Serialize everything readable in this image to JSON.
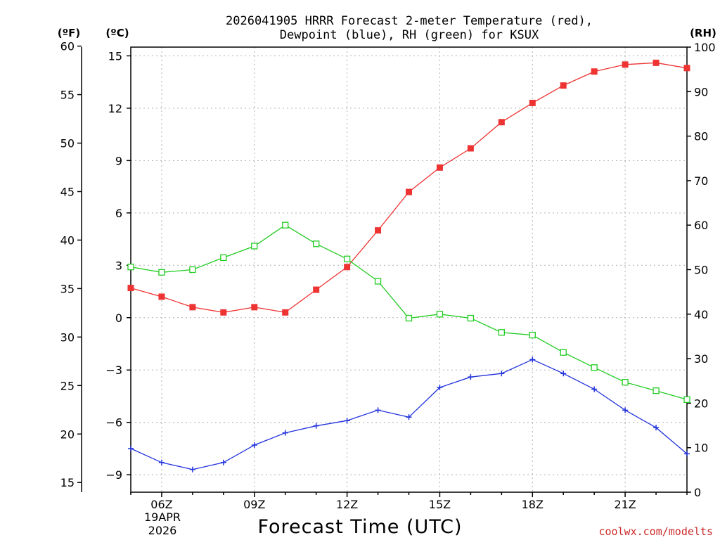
{
  "chart_data": {
    "type": "line",
    "title_line1": "2026041905 HRRR Forecast 2-meter Temperature (red),",
    "title_line2": "Dewpoint (blue), RH (green) for KSUX",
    "xlabel": "Forecast Time (UTC)",
    "unit_f": "(ºF)",
    "unit_c": "(ºC)",
    "unit_rh": "(RH)",
    "date_label_1": "19APR",
    "date_label_2": "2026",
    "credit": "coolwx.com/modelts",
    "x_hours": [
      5,
      6,
      7,
      8,
      9,
      10,
      11,
      12,
      13,
      14,
      15,
      16,
      17,
      18,
      19,
      20,
      21,
      22,
      23
    ],
    "x_tick_hours": [
      6,
      9,
      12,
      15,
      18,
      21
    ],
    "x_tick_labels": [
      "06Z",
      "09Z",
      "12Z",
      "15Z",
      "18Z",
      "21Z"
    ],
    "xlim": [
      5,
      23
    ],
    "ylim_c": [
      -10,
      15.5
    ],
    "y_ticks_c": [
      15,
      12,
      9,
      6,
      3,
      0,
      -3,
      -6,
      -9
    ],
    "y_tick_labels_c": [
      "15",
      "12",
      "9",
      "6",
      "3",
      "0",
      "−3",
      "−6",
      "−9"
    ],
    "ylim_f": [
      14,
      59.9
    ],
    "y_ticks_f": [
      60,
      55,
      50,
      45,
      40,
      35,
      30,
      25,
      20,
      15
    ],
    "y_tick_labels_f": [
      "60",
      "55",
      "50",
      "45",
      "40",
      "35",
      "30",
      "25",
      "20",
      "15"
    ],
    "ylim_rh": [
      0,
      100
    ],
    "y_ticks_rh": [
      100,
      90,
      80,
      70,
      60,
      50,
      40,
      30,
      20,
      10,
      0
    ],
    "y_tick_labels_rh": [
      "100",
      "90",
      "80",
      "70",
      "60",
      "50",
      "40",
      "30",
      "20",
      "10",
      "0"
    ],
    "series": [
      {
        "name": "Temperature",
        "unit": "C",
        "color": "#ee3333",
        "marker": "filled-square",
        "values": [
          1.7,
          1.2,
          0.6,
          0.3,
          0.6,
          0.3,
          1.6,
          2.9,
          5.0,
          7.2,
          8.6,
          9.7,
          11.2,
          12.3,
          13.3,
          14.1,
          14.5,
          14.6,
          14.3
        ]
      },
      {
        "name": "Dewpoint",
        "unit": "C",
        "color": "#2233dd",
        "marker": "plus",
        "values": [
          -7.5,
          -8.3,
          -8.7,
          -8.3,
          -7.3,
          -6.6,
          -6.2,
          -5.9,
          -5.3,
          -5.7,
          -4.0,
          -3.4,
          -3.2,
          -2.4,
          -3.2,
          -4.1,
          -5.3,
          -6.3,
          -7.8
        ]
      },
      {
        "name": "RH",
        "unit": "%",
        "color": "#22cc22",
        "marker": "open-square",
        "values": [
          50.6,
          49.4,
          50.0,
          52.7,
          55.3,
          60.0,
          55.8,
          52.4,
          47.4,
          39.1,
          40.0,
          39.1,
          35.9,
          35.3,
          31.4,
          28.0,
          24.7,
          22.8,
          20.8
        ]
      }
    ]
  }
}
